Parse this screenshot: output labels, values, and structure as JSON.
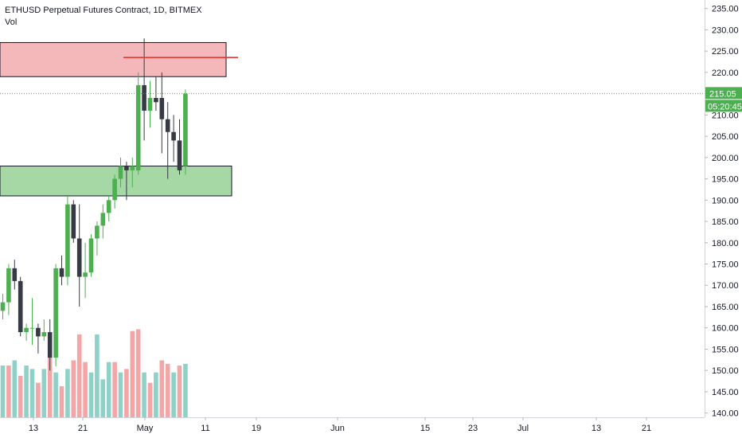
{
  "header": {
    "symbol_line": "ETHUSD Perpetual Futures Contract, 1D, BITMEX",
    "volume_label": "Vol"
  },
  "price_tag": {
    "value": "215.05",
    "countdown": "05:20:45"
  },
  "colors": {
    "up": "#4caf50",
    "down": "#363a45",
    "vol_up": "#8fd1c7",
    "vol_down": "#f4a6a6",
    "supply_zone": "#f4b7ba",
    "demand_zone": "#a5d8a5",
    "resistance_line": "#e53935",
    "last_price": "#4caf50"
  },
  "chart_data": {
    "type": "candlestick",
    "title": "ETHUSD Perpetual Futures Contract, 1D, BITMEX",
    "y_axis": {
      "min": 139,
      "max": 237,
      "ticks": [
        "235.00",
        "230.00",
        "225.00",
        "220.00",
        "215.00",
        "210.00",
        "205.00",
        "200.00",
        "195.00",
        "190.00",
        "185.00",
        "180.00",
        "175.00",
        "170.00",
        "165.00",
        "160.00",
        "155.00",
        "150.00",
        "145.00",
        "140.00"
      ]
    },
    "x_axis": {
      "labels": [
        "13",
        "21",
        "May",
        "11",
        "19",
        "Jun",
        "15",
        "23",
        "Jul",
        "13",
        "21"
      ]
    },
    "candles": [
      {
        "o": 164,
        "h": 168,
        "l": 162,
        "c": 166
      },
      {
        "o": 166,
        "h": 175,
        "l": 163,
        "c": 174
      },
      {
        "o": 174,
        "h": 176,
        "l": 169,
        "c": 171
      },
      {
        "o": 171,
        "h": 172,
        "l": 158,
        "c": 159
      },
      {
        "o": 159,
        "h": 161,
        "l": 157,
        "c": 160
      },
      {
        "o": 160,
        "h": 167,
        "l": 156,
        "c": 160
      },
      {
        "o": 160,
        "h": 161,
        "l": 154,
        "c": 158
      },
      {
        "o": 158,
        "h": 162,
        "l": 157,
        "c": 159
      },
      {
        "o": 159,
        "h": 162,
        "l": 150,
        "c": 153
      },
      {
        "o": 153,
        "h": 175,
        "l": 151,
        "c": 174
      },
      {
        "o": 174,
        "h": 177,
        "l": 170,
        "c": 172
      },
      {
        "o": 172,
        "h": 191,
        "l": 170,
        "c": 189
      },
      {
        "o": 189,
        "h": 190,
        "l": 180,
        "c": 181
      },
      {
        "o": 181,
        "h": 189,
        "l": 165,
        "c": 172
      },
      {
        "o": 172,
        "h": 180,
        "l": 167,
        "c": 173
      },
      {
        "o": 173,
        "h": 182,
        "l": 172,
        "c": 181
      },
      {
        "o": 181,
        "h": 185,
        "l": 177,
        "c": 184
      },
      {
        "o": 184,
        "h": 189,
        "l": 181,
        "c": 187
      },
      {
        "o": 187,
        "h": 191,
        "l": 185,
        "c": 190
      },
      {
        "o": 190,
        "h": 196,
        "l": 188,
        "c": 195
      },
      {
        "o": 195,
        "h": 200,
        "l": 193,
        "c": 198
      },
      {
        "o": 198,
        "h": 199,
        "l": 190,
        "c": 197
      },
      {
        "o": 197,
        "h": 200,
        "l": 193,
        "c": 198
      },
      {
        "o": 197,
        "h": 220,
        "l": 196,
        "c": 217
      },
      {
        "o": 217,
        "h": 228,
        "l": 204,
        "c": 211
      },
      {
        "o": 211,
        "h": 218,
        "l": 207,
        "c": 214
      },
      {
        "o": 214,
        "h": 219,
        "l": 211,
        "c": 213
      },
      {
        "o": 214,
        "h": 220,
        "l": 201,
        "c": 209
      },
      {
        "o": 209,
        "h": 213,
        "l": 195,
        "c": 206
      },
      {
        "o": 206,
        "h": 210,
        "l": 199,
        "c": 204
      },
      {
        "o": 204,
        "h": 209,
        "l": 196,
        "c": 197
      },
      {
        "o": 198,
        "h": 216,
        "l": 196,
        "c": 215
      }
    ],
    "volume": [
      {
        "v": 30,
        "d": "up"
      },
      {
        "v": 30,
        "d": "down"
      },
      {
        "v": 33,
        "d": "up"
      },
      {
        "v": 24,
        "d": "down"
      },
      {
        "v": 30,
        "d": "up"
      },
      {
        "v": 28,
        "d": "up"
      },
      {
        "v": 20,
        "d": "down"
      },
      {
        "v": 28,
        "d": "up"
      },
      {
        "v": 36,
        "d": "down"
      },
      {
        "v": 26,
        "d": "up"
      },
      {
        "v": 18,
        "d": "down"
      },
      {
        "v": 28,
        "d": "up"
      },
      {
        "v": 33,
        "d": "down"
      },
      {
        "v": 48,
        "d": "down"
      },
      {
        "v": 32,
        "d": "down"
      },
      {
        "v": 26,
        "d": "up"
      },
      {
        "v": 48,
        "d": "up"
      },
      {
        "v": 22,
        "d": "up"
      },
      {
        "v": 32,
        "d": "up"
      },
      {
        "v": 32,
        "d": "down"
      },
      {
        "v": 26,
        "d": "up"
      },
      {
        "v": 28,
        "d": "down"
      },
      {
        "v": 50,
        "d": "down"
      },
      {
        "v": 51,
        "d": "down"
      },
      {
        "v": 26,
        "d": "up"
      },
      {
        "v": 20,
        "d": "down"
      },
      {
        "v": 26,
        "d": "up"
      },
      {
        "v": 33,
        "d": "down"
      },
      {
        "v": 31,
        "d": "down"
      },
      {
        "v": 26,
        "d": "up"
      },
      {
        "v": 30,
        "d": "down"
      },
      {
        "v": 31,
        "d": "up"
      }
    ],
    "volume_scale_max": 60,
    "zones": [
      {
        "type": "supply",
        "y_top": 227,
        "y_bottom": 219
      },
      {
        "type": "demand",
        "y_top": 198,
        "y_bottom": 191
      }
    ],
    "lines": [
      {
        "type": "resistance",
        "y": 223.5
      },
      {
        "type": "last_price",
        "y": 215.05,
        "style": "dotted"
      }
    ]
  }
}
